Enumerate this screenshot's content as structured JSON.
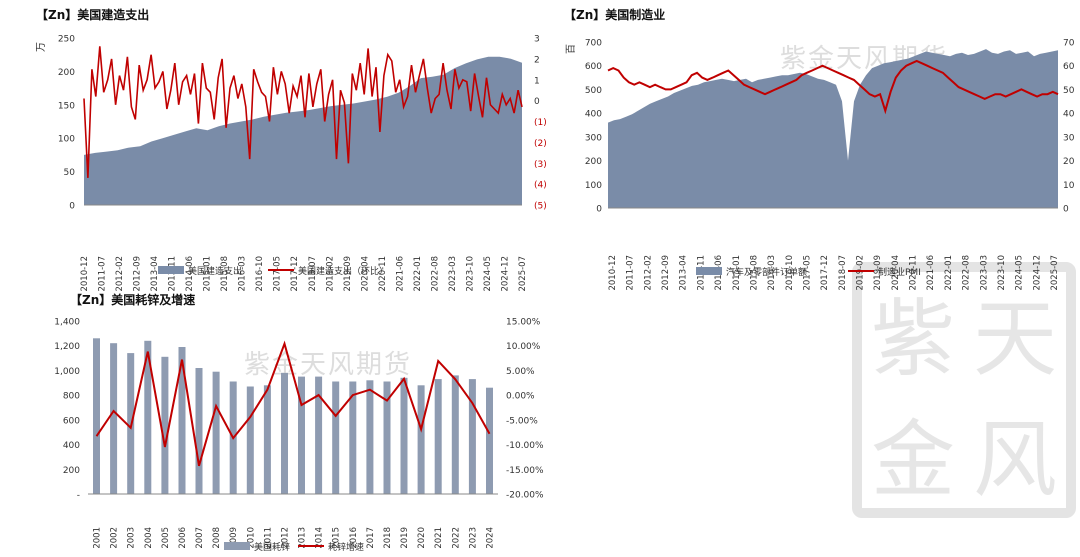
{
  "watermark": {
    "text": "紫金天风期货",
    "seal_chars": [
      "紫",
      "天",
      "金",
      "风"
    ]
  },
  "colors": {
    "area": "#7a8ca8",
    "bar": "#8e9bb1",
    "line": "#c00000",
    "text": "#333333",
    "axis": "#888888"
  },
  "chart_data": [
    {
      "type": "area",
      "title": "【Zn】美国建造支出",
      "ylabel": "万",
      "ylim": [
        0,
        250
      ],
      "yticks": [
        "0",
        "50",
        "100",
        "150",
        "200",
        "250"
      ],
      "y2lim": [
        -5,
        3
      ],
      "y2ticks": [
        "(5)",
        "(4)",
        "(3)",
        "(2)",
        "(1)",
        "0",
        "1",
        "2",
        "3"
      ],
      "x_labels": [
        "2010-12",
        "2011-07",
        "2012-02",
        "2012-09",
        "2013-04",
        "2013-11",
        "2014-06",
        "2015-01",
        "2015-08",
        "2016-03",
        "2016-10",
        "2017-05",
        "2017-12",
        "2018-07",
        "2019-02",
        "2019-09",
        "2020-04",
        "2020-11",
        "2021-06",
        "2022-01",
        "2022-08",
        "2023-03",
        "2023-10",
        "2024-05",
        "2024-12",
        "2025-07"
      ],
      "series": [
        {
          "name": "美国建造支出",
          "kind": "area",
          "axis": "left",
          "values": [
            75,
            78,
            80,
            82,
            86,
            88,
            95,
            100,
            105,
            110,
            115,
            112,
            118,
            122,
            125,
            128,
            132,
            135,
            138,
            140,
            142,
            145,
            148,
            150,
            152,
            155,
            158,
            162,
            168,
            178,
            190,
            192,
            195,
            205,
            212,
            218,
            222,
            222,
            219,
            213
          ]
        },
        {
          "name": "美国建造支出（环比）",
          "kind": "line",
          "axis": "right",
          "values": [
            0.1,
            -3.7,
            1.5,
            0.2,
            2.6,
            0.4,
            1.0,
            2.0,
            -0.2,
            1.2,
            0.5,
            2.1,
            -0.3,
            -0.9,
            1.7,
            0.5,
            1.0,
            2.2,
            0.6,
            0.9,
            1.4,
            -0.4,
            0.5,
            1.8,
            -0.2,
            0.9,
            1.2,
            0.3,
            1.3,
            -1.1,
            1.8,
            0.6,
            0.4,
            -0.9,
            1.1,
            2.0,
            -1.3,
            0.6,
            1.2,
            0.1,
            0.8,
            -0.3,
            -2.8,
            1.5,
            0.9,
            0.4,
            0.2,
            -1.0,
            1.6,
            0.3,
            1.4,
            0.8,
            -0.6,
            0.7,
            0.2,
            1.2,
            -0.8,
            1.3,
            -0.3,
            0.8,
            1.5,
            -1.0,
            0.3,
            1.0,
            -2.8,
            0.5,
            -0.1,
            -3.0,
            1.3,
            0.5,
            1.8,
            0.3,
            2.5,
            0.2,
            1.6,
            -1.5,
            1.2,
            2.2,
            1.9,
            0.4,
            1.0,
            -0.3,
            0.2,
            1.7,
            0.4,
            1.2,
            2.0,
            0.6,
            -0.6,
            0.1,
            0.3,
            1.8,
            0.5,
            -0.4,
            1.5,
            0.6,
            1.0,
            0.9,
            -0.5,
            1.3,
            0.2,
            -0.8,
            1.1,
            -0.2,
            -0.4,
            -0.6,
            0.3,
            -0.2,
            0.1,
            -0.6,
            0.5,
            -0.3
          ]
        }
      ]
    },
    {
      "type": "area",
      "title": "【Zn】美国制造业",
      "ylabel": "百",
      "ylim": [
        0,
        700
      ],
      "yticks": [
        "0",
        "100",
        "200",
        "300",
        "400",
        "500",
        "600",
        "700"
      ],
      "y2lim": [
        0,
        70
      ],
      "y2ticks": [
        "0",
        "10",
        "20",
        "30",
        "40",
        "50",
        "60",
        "70"
      ],
      "x_labels": [
        "2010-12",
        "2011-07",
        "2012-02",
        "2012-09",
        "2013-04",
        "2013-11",
        "2014-06",
        "2015-01",
        "2015-08",
        "2016-03",
        "2016-10",
        "2017-05",
        "2017-12",
        "2018-07",
        "2019-02",
        "2019-09",
        "2020-04",
        "2020-11",
        "2021-06",
        "2022-01",
        "2022-08",
        "2023-03",
        "2023-10",
        "2024-05",
        "2024-12",
        "2025-07"
      ],
      "series": [
        {
          "name": "汽车及零部件订单额",
          "kind": "area",
          "axis": "left",
          "values": [
            360,
            370,
            375,
            385,
            395,
            410,
            425,
            440,
            450,
            460,
            470,
            485,
            495,
            505,
            515,
            520,
            530,
            535,
            540,
            545,
            540,
            535,
            540,
            545,
            530,
            540,
            545,
            550,
            555,
            560,
            560,
            565,
            570,
            565,
            555,
            545,
            540,
            530,
            520,
            450,
            200,
            450,
            520,
            560,
            590,
            600,
            610,
            615,
            620,
            625,
            630,
            640,
            650,
            660,
            655,
            650,
            645,
            640,
            650,
            655,
            645,
            650,
            660,
            670,
            655,
            650,
            660,
            665,
            650,
            655,
            660,
            640,
            650,
            655,
            660,
            665
          ]
        },
        {
          "name": "制造业PMI",
          "kind": "line",
          "axis": "right",
          "values": [
            58,
            59,
            58,
            55,
            53,
            52,
            53,
            52,
            51,
            52,
            51,
            50,
            50,
            51,
            52,
            53,
            56,
            57,
            55,
            54,
            55,
            56,
            57,
            58,
            56,
            54,
            52,
            51,
            50,
            49,
            48,
            49,
            50,
            51,
            52,
            53,
            54,
            56,
            57,
            58,
            59,
            60,
            59,
            58,
            57,
            56,
            55,
            54,
            52,
            50,
            48,
            47,
            48,
            41,
            49,
            55,
            58,
            60,
            61,
            62,
            61,
            60,
            59,
            58,
            57,
            55,
            53,
            51,
            50,
            49,
            48,
            47,
            46,
            47,
            48,
            48,
            47,
            48,
            49,
            50,
            49,
            48,
            47,
            48,
            48,
            49,
            48
          ]
        }
      ]
    },
    {
      "type": "bar",
      "title": "【Zn】美国耗锌及增速",
      "ylim": [
        0,
        1400
      ],
      "yticks": [
        "-",
        "200",
        "400",
        "600",
        "800",
        "1,000",
        "1,200",
        "1,400"
      ],
      "y2lim": [
        -20,
        15
      ],
      "y2ticks": [
        "-20.00%",
        "-15.00%",
        "-10.00%",
        "-5.00%",
        "0.00%",
        "5.00%",
        "10.00%",
        "15.00%"
      ],
      "categories": [
        "2001",
        "2002",
        "2003",
        "2004",
        "2005",
        "2006",
        "2007",
        "2008",
        "2009",
        "2010",
        "2011",
        "2012",
        "2013",
        "2014",
        "2015",
        "2016",
        "2017",
        "2018",
        "2019",
        "2020",
        "2021",
        "2022",
        "2023",
        "2024"
      ],
      "series": [
        {
          "name": "美国耗锌",
          "kind": "bar",
          "axis": "left",
          "values": [
            1260,
            1220,
            1140,
            1240,
            1110,
            1190,
            1020,
            990,
            910,
            870,
            880,
            980,
            950,
            950,
            910,
            910,
            920,
            910,
            940,
            880,
            930,
            960,
            930,
            860
          ]
        },
        {
          "name": "耗锌增速",
          "kind": "line",
          "axis": "right",
          "values": [
            -8.3,
            -3.2,
            -6.6,
            8.8,
            -10.5,
            7.2,
            -14.3,
            -2.2,
            -8.7,
            -4.4,
            1.1,
            10.4,
            -2.0,
            0.0,
            -4.2,
            0.0,
            1.1,
            -1.1,
            3.3,
            -6.9,
            6.9,
            3.2,
            -1.6,
            -7.8
          ]
        }
      ]
    }
  ]
}
